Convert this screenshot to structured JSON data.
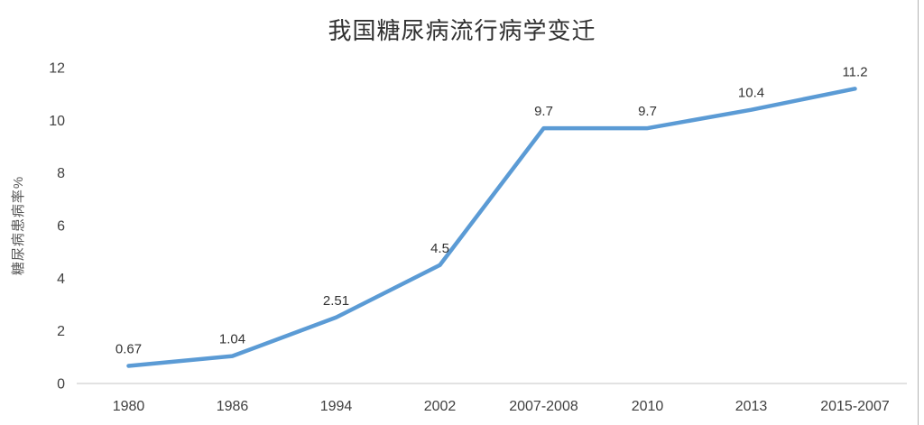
{
  "chart": {
    "title": "我国糖尿病流行病学变迁",
    "ylabel": "糖尿病患病率%"
  },
  "chart_data": {
    "type": "line",
    "title": "我国糖尿病流行病学变迁",
    "xlabel": "",
    "ylabel": "糖尿病患病率%",
    "categories": [
      "1980",
      "1986",
      "1994",
      "2002",
      "2007-2008",
      "2010",
      "2013",
      "2015-2007"
    ],
    "values": [
      0.67,
      1.04,
      2.51,
      4.5,
      9.7,
      9.7,
      10.4,
      11.2
    ],
    "data_labels": [
      "0.67",
      "1.04",
      "2.51",
      "4.5",
      "9.7",
      "9.7",
      "10.4",
      "11.2"
    ],
    "ylim": [
      0,
      12
    ],
    "yticks": [
      0,
      2,
      4,
      6,
      8,
      10,
      12
    ],
    "grid": false,
    "legend": false,
    "line_color": "#5B9BD5",
    "axis_line_color": "#D9D9D9",
    "edge_line_color": "#B3B3B3",
    "label_color": "#404040"
  }
}
